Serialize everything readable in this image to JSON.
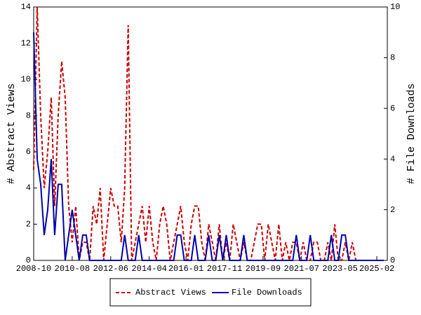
{
  "chart_data": {
    "type": "line",
    "x": [
      "2008-10",
      "2008-12",
      "2009-02",
      "2009-04",
      "2009-06",
      "2009-08",
      "2009-10",
      "2009-12",
      "2010-02",
      "2010-04",
      "2010-06",
      "2010-08",
      "2010-10",
      "2010-12",
      "2011-02",
      "2011-04",
      "2011-06",
      "2011-08",
      "2011-10",
      "2011-12",
      "2012-02",
      "2012-04",
      "2012-06",
      "2012-08",
      "2012-10",
      "2012-12",
      "2013-02",
      "2013-04",
      "2013-06",
      "2013-08",
      "2013-10",
      "2013-12",
      "2014-02",
      "2014-04",
      "2014-06",
      "2014-08",
      "2014-10",
      "2014-12",
      "2015-02",
      "2015-04",
      "2015-06",
      "2015-08",
      "2015-10",
      "2015-12",
      "2016-02",
      "2016-04",
      "2016-06",
      "2016-08",
      "2016-10",
      "2016-12",
      "2017-02",
      "2017-04",
      "2017-06",
      "2017-08",
      "2017-10",
      "2017-12",
      "2018-02",
      "2018-04",
      "2018-06",
      "2018-08",
      "2018-10",
      "2018-12",
      "2019-02",
      "2019-04",
      "2019-06",
      "2019-08",
      "2019-10",
      "2019-12",
      "2020-02",
      "2020-04",
      "2020-06",
      "2020-08",
      "2020-10",
      "2020-12",
      "2021-02",
      "2021-04",
      "2021-06",
      "2021-08",
      "2021-10",
      "2021-12",
      "2022-02",
      "2022-04",
      "2022-06",
      "2022-08",
      "2022-10",
      "2022-12",
      "2023-02",
      "2023-04",
      "2023-06",
      "2023-08",
      "2023-10",
      "2023-12",
      "2024-02",
      "2024-04",
      "2024-06",
      "2024-08",
      "2024-10",
      "2024-12",
      "2025-02",
      "2025-04",
      "2025-06"
    ],
    "series": [
      {
        "name": "Abstract Views",
        "color": "#cc0000",
        "dash": true,
        "values": [
          5,
          14,
          8,
          4,
          6,
          9,
          3,
          8,
          11,
          9,
          3,
          1,
          3,
          0,
          1,
          1,
          0,
          3,
          2,
          4,
          0,
          2,
          4,
          3,
          3,
          1,
          4,
          13,
          0,
          1,
          2,
          3,
          1,
          3,
          1,
          0,
          2,
          3,
          2,
          0,
          1,
          2,
          3,
          1,
          0,
          2,
          3,
          3,
          1,
          0,
          2,
          1,
          0,
          2,
          0,
          1,
          0,
          2,
          1,
          0,
          1,
          0,
          0,
          1,
          2,
          2,
          0,
          2,
          1,
          0,
          2,
          0,
          1,
          0,
          1,
          1,
          0,
          1,
          0,
          0,
          1,
          1,
          0,
          0,
          1,
          0,
          2,
          0,
          0,
          1,
          0,
          1,
          0,
          0,
          0,
          0,
          0,
          0,
          0,
          0,
          0
        ]
      },
      {
        "name": "File Downloads",
        "color": "#0000aa",
        "axis": "y2",
        "dash": false,
        "values": [
          9,
          4,
          3,
          1,
          2,
          4,
          1,
          3,
          3,
          0,
          1,
          2,
          1,
          0,
          1,
          1,
          0,
          0,
          0,
          0,
          0,
          0,
          0,
          0,
          0,
          0,
          1,
          0,
          0,
          0,
          1,
          0,
          0,
          0,
          0,
          0,
          0,
          0,
          0,
          0,
          0,
          1,
          1,
          0,
          0,
          0,
          1,
          0,
          0,
          0,
          1,
          0,
          0,
          1,
          0,
          1,
          0,
          0,
          0,
          0,
          1,
          0,
          0,
          0,
          0,
          0,
          0,
          0,
          0,
          0,
          0,
          0,
          0,
          0,
          0,
          1,
          0,
          0,
          0,
          1,
          0,
          0,
          0,
          0,
          0,
          1,
          0,
          0,
          1,
          1,
          0,
          0,
          0,
          0,
          0,
          0,
          0,
          0,
          0,
          0,
          0
        ]
      }
    ],
    "xlim": [
      "2008-10",
      "2025-08"
    ],
    "xticks": [
      "2008-10",
      "2010-08",
      "2012-06",
      "2014-04",
      "2016-01",
      "2017-11",
      "2019-09",
      "2021-07",
      "2023-05",
      "2025-02"
    ],
    "ylabel": "# Abstract Views",
    "ylim": [
      0,
      14
    ],
    "yticks": [
      0,
      2,
      4,
      6,
      8,
      10,
      12,
      14
    ],
    "y2label": "# File Downloads",
    "y2lim": [
      0,
      10
    ],
    "y2ticks": [
      0,
      2,
      4,
      6,
      8,
      10
    ],
    "legend": "bottom"
  }
}
